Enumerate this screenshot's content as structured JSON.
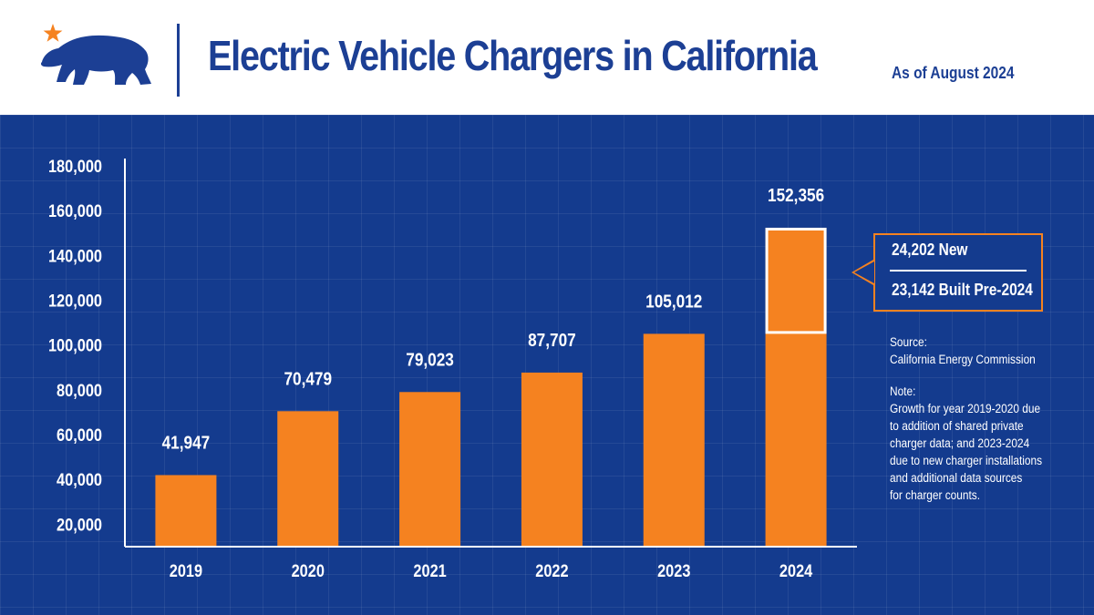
{
  "header": {
    "title": "Electric Vehicle Chargers in California",
    "as_of": "As of August 2024"
  },
  "colors": {
    "brand_blue": "#1c3f94",
    "panel_blue": "#143b8e",
    "bar_orange": "#f58220",
    "star_orange": "#f58220",
    "text_white": "#ffffff"
  },
  "chart_data": {
    "type": "bar",
    "title": "Electric Vehicle Chargers in California",
    "categories": [
      "2019",
      "2020",
      "2021",
      "2022",
      "2023",
      "2024"
    ],
    "values": [
      41947,
      70479,
      79023,
      87707,
      105012,
      152356
    ],
    "data_labels": [
      "41,947",
      "70,479",
      "79,023",
      "87,707",
      "105,012",
      "152,356"
    ],
    "ylim": [
      10000,
      180000
    ],
    "yticks": [
      20000,
      40000,
      60000,
      80000,
      100000,
      120000,
      140000,
      160000,
      180000
    ],
    "ytick_labels": [
      "20,000",
      "40,000",
      "60,000",
      "80,000",
      "100,000",
      "120,000",
      "140,000",
      "160,000",
      "180,000"
    ],
    "highlight_range": [
      105012,
      152356
    ],
    "xlabel": "",
    "ylabel": ""
  },
  "callout": {
    "line1": "24,202 New",
    "line2": "23,142 Built Pre-2024"
  },
  "notes": {
    "source_label": "Source:",
    "source_text": "California Energy Commission",
    "note_label": "Note:",
    "note_lines": [
      "Growth for year 2019-2020 due",
      "to addition of shared private",
      "charger data; and 2023-2024",
      "due to new charger installations",
      "and additional data sources",
      "for charger counts."
    ]
  }
}
